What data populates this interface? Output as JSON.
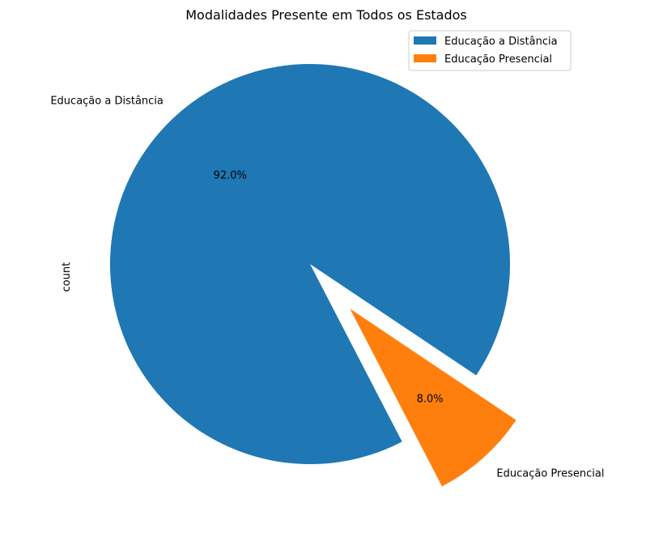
{
  "chart_data": {
    "type": "pie",
    "title": "Modalidades Presente em Todos os Estados",
    "ylabel": "count",
    "slices": [
      {
        "label": "Educação a Distância",
        "percent": 92.0,
        "percent_label": "92.0%",
        "color": "#1f77b4",
        "exploded": false
      },
      {
        "label": "Educação Presencial",
        "percent": 8.0,
        "percent_label": "8.0%",
        "color": "#ff7f0e",
        "exploded": true
      }
    ],
    "legend": {
      "placement": "top-right",
      "entries": [
        "Educação a Distância",
        "Educação Presencial"
      ]
    }
  }
}
